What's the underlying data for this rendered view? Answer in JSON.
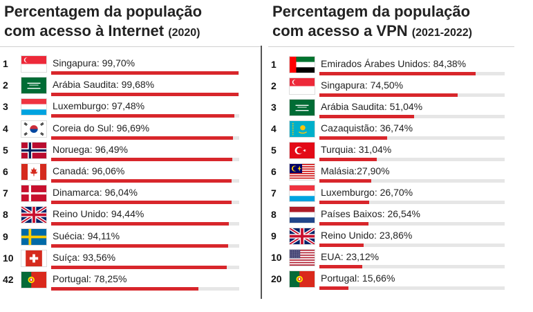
{
  "panels": [
    {
      "title_main_1": "Percentagem da população",
      "title_main_2": "com acesso à Internet",
      "title_sub": "(2020)",
      "rows": [
        {
          "rank": "1",
          "label": "Singapura: 99,70%",
          "value": 99.7,
          "flag": "singapore-flag"
        },
        {
          "rank": "2",
          "label": "Arábia Saudita: 99,68%",
          "value": 99.68,
          "flag": "saudi-arabia-flag"
        },
        {
          "rank": "3",
          "label": "Luxemburgo: 97,48%",
          "value": 97.48,
          "flag": "luxembourg-flag"
        },
        {
          "rank": "4",
          "label": "Coreia do Sul: 96,69%",
          "value": 96.69,
          "flag": "south-korea-flag"
        },
        {
          "rank": "5",
          "label": "Noruega: 96,49%",
          "value": 96.49,
          "flag": "norway-flag"
        },
        {
          "rank": "6",
          "label": "Canadá: 96,06%",
          "value": 96.06,
          "flag": "canada-flag"
        },
        {
          "rank": "7",
          "label": "Dinamarca: 96,04%",
          "value": 96.04,
          "flag": "denmark-flag"
        },
        {
          "rank": "8",
          "label": "Reino Unido: 94,44%",
          "value": 94.44,
          "flag": "uk-flag"
        },
        {
          "rank": "9",
          "label": "Suécia: 94,11%",
          "value": 94.11,
          "flag": "sweden-flag"
        },
        {
          "rank": "10",
          "label": "Suíça: 93,56%",
          "value": 93.56,
          "flag": "switzerland-flag"
        },
        {
          "rank": "42",
          "label": "Portugal: 78,25%",
          "value": 78.25,
          "flag": "portugal-flag"
        }
      ]
    },
    {
      "title_main_1": "Percentagem da população",
      "title_main_2": "com acesso a VPN",
      "title_sub": "(2021-2022)",
      "rows": [
        {
          "rank": "1",
          "label": "Emirados Árabes Unidos: 84,38%",
          "value": 84.38,
          "flag": "uae-flag"
        },
        {
          "rank": "2",
          "label": "Singapura: 74,50%",
          "value": 74.5,
          "flag": "singapore-flag"
        },
        {
          "rank": "3",
          "label": "Arábia Saudita: 51,04%",
          "value": 51.04,
          "flag": "saudi-arabia-flag"
        },
        {
          "rank": "4",
          "label": "Cazaquistão: 36,74%",
          "value": 36.74,
          "flag": "kazakhstan-flag"
        },
        {
          "rank": "5",
          "label": "Turquia: 31,04%",
          "value": 31.04,
          "flag": "turkey-flag"
        },
        {
          "rank": "6",
          "label": "Malásia:27,90%",
          "value": 27.9,
          "flag": "malaysia-flag"
        },
        {
          "rank": "7",
          "label": "Luxemburgo: 26,70%",
          "value": 26.7,
          "flag": "luxembourg-flag"
        },
        {
          "rank": "8",
          "label": "Países Baixos: 26,54%",
          "value": 26.54,
          "flag": "netherlands-flag"
        },
        {
          "rank": "9",
          "label": "Reino Unido: 23,86%",
          "value": 23.86,
          "flag": "uk-flag"
        },
        {
          "rank": "10",
          "label": "EUA: 23,12%",
          "value": 23.12,
          "flag": "usa-flag"
        },
        {
          "rank": "20",
          "label": "Portugal: 15,66%",
          "value": 15.66,
          "flag": "portugal-flag"
        }
      ]
    }
  ],
  "colors": {
    "bar": "#d8262b",
    "track": "#e6e6e6"
  },
  "chart_data": [
    {
      "type": "bar",
      "title": "Percentagem da população com acesso à Internet (2020)",
      "categories": [
        "Singapura",
        "Arábia Saudita",
        "Luxemburgo",
        "Coreia do Sul",
        "Noruega",
        "Canadá",
        "Dinamarca",
        "Reino Unido",
        "Suécia",
        "Suíça",
        "Portugal"
      ],
      "values": [
        99.7,
        99.68,
        97.48,
        96.69,
        96.49,
        96.06,
        96.04,
        94.44,
        94.11,
        93.56,
        78.25
      ],
      "ylim": [
        0,
        100
      ]
    },
    {
      "type": "bar",
      "title": "Percentagem da população com acesso a VPN (2021-2022)",
      "categories": [
        "Emirados Árabes Unidos",
        "Singapura",
        "Arábia Saudita",
        "Cazaquistão",
        "Turquia",
        "Malásia",
        "Luxemburgo",
        "Países Baixos",
        "Reino Unido",
        "EUA",
        "Portugal"
      ],
      "values": [
        84.38,
        74.5,
        51.04,
        36.74,
        31.04,
        27.9,
        26.7,
        26.54,
        23.86,
        23.12,
        15.66
      ],
      "ylim": [
        0,
        100
      ]
    }
  ]
}
